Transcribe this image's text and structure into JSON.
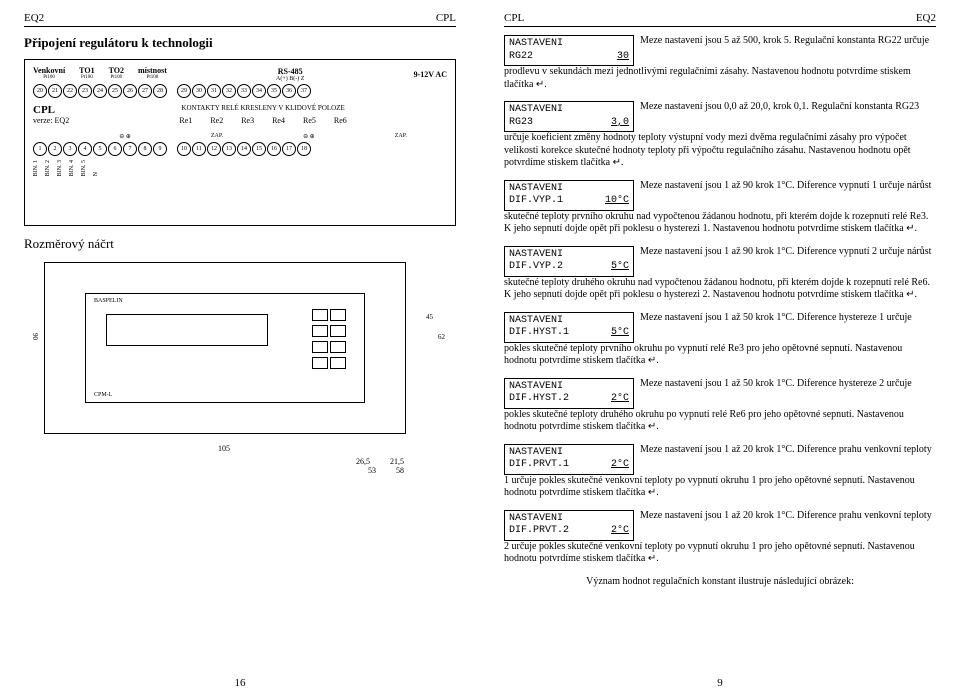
{
  "left": {
    "header_l": "EQ2",
    "header_r": "CPL",
    "title1": "Připojení regulátoru k technologii",
    "wiring": {
      "sensors": [
        "Venkovní",
        "TO1",
        "TO2",
        "místnost"
      ],
      "pt": "Pt100",
      "rs485": "RS-485",
      "rs485_pins": "A(+) B(-)  Z",
      "ac": "9-12V AC",
      "top_terms": [
        "20",
        "21",
        "22",
        "23",
        "24",
        "25",
        "26",
        "27",
        "28",
        "29",
        "30",
        "31",
        "32",
        "33",
        "34",
        "35",
        "36",
        "37"
      ],
      "cpl": "CPL",
      "verze": "verze: EQ2",
      "kontakty": "KONTAKTY RELÉ KRESLENY V KLIDOVÉ POLOZE",
      "relays": [
        "Re1",
        "Re2",
        "Re3",
        "Re4",
        "Re5",
        "Re6"
      ],
      "zap": "ZAP.",
      "bot_terms": [
        "1",
        "2",
        "3",
        "4",
        "5",
        "6",
        "7",
        "8",
        "9",
        "10",
        "11",
        "12",
        "13",
        "14",
        "15",
        "16",
        "17",
        "18"
      ],
      "bins": [
        "BIN. 1",
        "BIN. 2",
        "BIN. 3",
        "BIN. 4",
        "BIN. 5",
        "N"
      ]
    },
    "title2": "Rozměrový náčrt",
    "dims": {
      "w": "105",
      "h": "90",
      "d1": "45",
      "d2": "62",
      "d3": "26,5",
      "d4": "21,5",
      "d5": "53",
      "d6": "58"
    },
    "brand": "BASPELIN",
    "model": "CPM-L",
    "page_no": "16"
  },
  "right": {
    "header_l": "CPL",
    "header_r": "EQ2",
    "enter": "↵",
    "params": [
      {
        "l1": "NASTAVENI",
        "l2a": "RG22",
        "l2b": "30",
        "txt": "Meze nastavení jsou 5 až 500, krok 5. Regulační konstanta RG22 určuje prodlevu v sekundách mezi jednotlivými regulačními zásahy. Nastavenou hodnotu potvrdíme stiskem tlačítka ↵."
      },
      {
        "l1": "NASTAVENI",
        "l2a": "RG23",
        "l2b": "3,0",
        "txt": "Meze nastavení jsou 0,0 až 20,0, krok 0,1. Regulační konstanta RG23 určuje koeficient změny hodnoty teploty výstupní vody mezi dvěma regulačními zásahy pro výpočet velikosti korekce skutečné hodnoty teploty při výpočtu regulačního zásahu. Nastavenou hodnotu opět potvrdíme stiskem tlačítka ↵."
      },
      {
        "l1": "NASTAVENI",
        "l2a": "DIF.VYP.1",
        "l2b": "10°C",
        "txt": "Meze nastavení jsou 1 až 90 krok 1°C. Diference vypnutí 1 určuje nárůst skutečné teploty prvního okruhu nad vypočtenou žádanou hodnotu, při kterém dojde k rozepnutí relé Re3. K jeho sepnutí dojde opět při poklesu o hysterezi 1. Nastavenou hodnotu potvrdíme stiskem tlačítka ↵."
      },
      {
        "l1": "NASTAVENI",
        "l2a": "DIF.VYP.2",
        "l2b": "5°C",
        "txt": "Meze nastavení jsou 1 až 90 krok 1°C. Diference vypnutí 2 určuje nárůst skutečné teploty druhého okruhu nad vypočtenou žádanou hodnotu, při kterém dojde k rozepnutí relé Re6. K jeho sepnutí dojde opět při poklesu o hysterezi 2. Nastavenou hodnotu potvrdíme stiskem tlačítka ↵."
      },
      {
        "l1": "NASTAVENI",
        "l2a": "DIF.HYST.1",
        "l2b": "5°C",
        "txt": "Meze nastavení jsou 1 až 50 krok 1°C. Diference hystereze 1 určuje pokles skutečné teploty prvního okruhu po vypnutí relé Re3 pro jeho opětovné sepnutí. Nastavenou hodnotu potvrdíme stiskem tlačítka ↵."
      },
      {
        "l1": "NASTAVENI",
        "l2a": "DIF.HYST.2",
        "l2b": "2°C",
        "txt": "Meze nastavení jsou 1 až 50 krok 1°C. Diference hystereze 2 určuje pokles skutečné teploty druhého okruhu po vypnutí relé Re6 pro jeho opětovné sepnutí. Nastavenou hodnotu potvrdíme stiskem tlačítka ↵."
      },
      {
        "l1": "NASTAVENI",
        "l2a": "DIF.PRVT.1",
        "l2b": "2°C",
        "txt": "Meze nastavení jsou 1 až 20 krok 1°C. Diference prahu venkovní teploty 1 určuje pokles skutečné venkovní teploty po vypnutí okruhu 1 pro jeho opětovné sepnutí. Nastavenou hodnotu potvrdíme stiskem tlačítka ↵."
      },
      {
        "l1": "NASTAVENI",
        "l2a": "DIF.PRVT.2",
        "l2b": "2°C",
        "txt": "Meze nastavení jsou 1 až 20 krok 1°C. Diference prahu venkovní teploty 2 určuje pokles skutečné venkovní teploty po vypnutí okruhu 1 pro jeho opětovné sepnutí. Nastavenou hodnotu potvrdíme stiskem tlačítka ↵."
      }
    ],
    "final": "Význam hodnot regulačních konstant ilustruje následující obrázek:",
    "page_no": "9"
  }
}
